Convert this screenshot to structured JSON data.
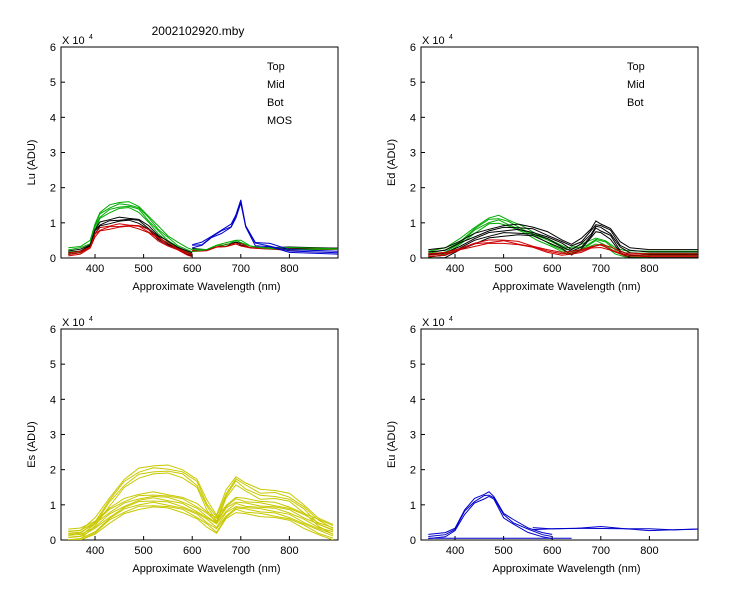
{
  "figure_title": "2002102920.mby",
  "colors": {
    "Top": "#000000",
    "Mid": "#cc0000",
    "Bot": "#00aa00",
    "MOS": "#0000cc",
    "Es": "#c8c800",
    "Eu": "#0000cc"
  },
  "chart_data": [
    {
      "id": "lu",
      "type": "line",
      "ylabel": "Lu (ADU)",
      "xlabel": "Approximate Wavelength (nm)",
      "xlim": [
        330,
        900
      ],
      "ylim": [
        0,
        6
      ],
      "xticks": [
        400,
        500,
        600,
        700,
        800
      ],
      "yticks": [
        0,
        1,
        2,
        3,
        4,
        5,
        6
      ],
      "exponent_label": "X 10",
      "exponent_power": "4",
      "legend": [
        "Top",
        "Mid",
        "Bot",
        "MOS"
      ],
      "series": [
        {
          "name": "Bot",
          "color_key": "Bot",
          "copies": 4,
          "spread": 0.06,
          "x": [
            345,
            370,
            390,
            400,
            410,
            430,
            450,
            470,
            490,
            510,
            530,
            550,
            570,
            590,
            600
          ],
          "y": [
            0.2,
            0.25,
            0.4,
            0.9,
            1.2,
            1.4,
            1.5,
            1.5,
            1.4,
            1.1,
            0.8,
            0.55,
            0.35,
            0.2,
            0.15
          ]
        },
        {
          "name": "Top",
          "color_key": "Top",
          "copies": 3,
          "spread": 0.05,
          "x": [
            345,
            370,
            390,
            400,
            410,
            430,
            450,
            470,
            490,
            510,
            530,
            550,
            570,
            590,
            600
          ],
          "y": [
            0.15,
            0.2,
            0.35,
            0.75,
            0.95,
            1.05,
            1.1,
            1.1,
            1.05,
            0.85,
            0.6,
            0.42,
            0.28,
            0.15,
            0.1
          ]
        },
        {
          "name": "Mid",
          "color_key": "Mid",
          "copies": 3,
          "spread": 0.04,
          "x": [
            345,
            370,
            390,
            400,
            410,
            430,
            450,
            470,
            490,
            510,
            530,
            550,
            570,
            590,
            600
          ],
          "y": [
            0.1,
            0.15,
            0.3,
            0.65,
            0.8,
            0.88,
            0.92,
            0.92,
            0.88,
            0.75,
            0.55,
            0.38,
            0.25,
            0.12,
            0.08
          ]
        },
        {
          "name": "Top",
          "color_key": "Top",
          "copies": 2,
          "spread": 0.02,
          "x": [
            600,
            630,
            650,
            670,
            690,
            700,
            720,
            750,
            800,
            900
          ],
          "y": [
            0.25,
            0.25,
            0.3,
            0.35,
            0.45,
            0.4,
            0.3,
            0.28,
            0.28,
            0.28
          ]
        },
        {
          "name": "Mid",
          "color_key": "Mid",
          "copies": 2,
          "spread": 0.03,
          "x": [
            600,
            630,
            650,
            670,
            690,
            700,
            720,
            750,
            800,
            900
          ],
          "y": [
            0.2,
            0.22,
            0.3,
            0.35,
            0.4,
            0.38,
            0.3,
            0.25,
            0.25,
            0.25
          ]
        },
        {
          "name": "Bot",
          "color_key": "Bot",
          "copies": 2,
          "spread": 0.03,
          "x": [
            600,
            630,
            650,
            670,
            690,
            700,
            720,
            750,
            800,
            900
          ],
          "y": [
            0.22,
            0.25,
            0.35,
            0.4,
            0.5,
            0.48,
            0.35,
            0.27,
            0.26,
            0.26
          ]
        },
        {
          "name": "MOS",
          "color_key": "MOS",
          "copies": 3,
          "spread": 0.04,
          "x": [
            600,
            620,
            640,
            660,
            680,
            690,
            700,
            710,
            730,
            760,
            800,
            900
          ],
          "y": [
            0.35,
            0.4,
            0.6,
            0.75,
            0.9,
            1.2,
            1.6,
            0.9,
            0.4,
            0.35,
            0.2,
            0.15
          ]
        }
      ]
    },
    {
      "id": "ed",
      "type": "line",
      "ylabel": "Ed  (ADU)",
      "xlabel": "Approximate Wavelength (nm)",
      "xlim": [
        330,
        900
      ],
      "ylim": [
        0,
        6
      ],
      "xticks": [
        400,
        500,
        600,
        700,
        800
      ],
      "yticks": [
        0,
        1,
        2,
        3,
        4,
        5,
        6
      ],
      "exponent_label": "X 10",
      "exponent_power": "4",
      "legend": [
        "Top",
        "Mid",
        "Bot"
      ],
      "series": [
        {
          "name": "Bot",
          "color_key": "Bot",
          "copies": 4,
          "spread": 0.06,
          "x": [
            345,
            380,
            410,
            440,
            470,
            490,
            510,
            540,
            570,
            600,
            630,
            650,
            670,
            690,
            710,
            730,
            750,
            800,
            900
          ],
          "y": [
            0.1,
            0.2,
            0.45,
            0.8,
            1.05,
            1.1,
            1.0,
            0.8,
            0.6,
            0.4,
            0.2,
            0.25,
            0.35,
            0.5,
            0.4,
            0.2,
            0.12,
            0.1,
            0.1
          ]
        },
        {
          "name": "Top",
          "color_key": "Top",
          "copies": 5,
          "spread": 0.07,
          "x": [
            345,
            380,
            410,
            440,
            470,
            500,
            530,
            560,
            590,
            620,
            640,
            660,
            680,
            690,
            700,
            720,
            740,
            760,
            800,
            900
          ],
          "y": [
            0.1,
            0.15,
            0.35,
            0.55,
            0.7,
            0.78,
            0.8,
            0.75,
            0.6,
            0.4,
            0.25,
            0.4,
            0.7,
            0.9,
            0.85,
            0.7,
            0.3,
            0.15,
            0.1,
            0.1
          ]
        },
        {
          "name": "Mid",
          "color_key": "Mid",
          "copies": 3,
          "spread": 0.04,
          "x": [
            345,
            380,
            410,
            440,
            470,
            500,
            530,
            560,
            590,
            620,
            640,
            660,
            680,
            700,
            720,
            750,
            800,
            900
          ],
          "y": [
            0.08,
            0.12,
            0.25,
            0.38,
            0.45,
            0.48,
            0.42,
            0.32,
            0.2,
            0.12,
            0.15,
            0.2,
            0.3,
            0.35,
            0.25,
            0.1,
            0.08,
            0.08
          ]
        }
      ]
    },
    {
      "id": "es",
      "type": "line",
      "ylabel": "Es  (ADU)",
      "xlabel": "Approximate Wavelength (nm)",
      "xlim": [
        330,
        900
      ],
      "ylim": [
        0,
        6
      ],
      "xticks": [
        400,
        500,
        600,
        700,
        800
      ],
      "yticks": [
        0,
        1,
        2,
        3,
        4,
        5,
        6
      ],
      "exponent_label": "X 10",
      "exponent_power": "4",
      "legend": [],
      "series": [
        {
          "name": "Es",
          "color_key": "Es",
          "copies": 4,
          "spread": 0.08,
          "x": [
            345,
            370,
            400,
            430,
            460,
            490,
            520,
            550,
            580,
            610,
            630,
            650,
            670,
            690,
            710,
            740,
            770,
            800,
            830,
            860,
            890
          ],
          "y": [
            0.12,
            0.15,
            0.5,
            1.1,
            1.6,
            1.9,
            2.0,
            2.0,
            1.9,
            1.6,
            1.0,
            0.6,
            1.3,
            1.7,
            1.5,
            1.3,
            1.3,
            1.2,
            0.9,
            0.5,
            0.3
          ]
        },
        {
          "name": "Es",
          "color_key": "Es",
          "copies": 8,
          "spread": 0.06,
          "x": [
            345,
            370,
            400,
            430,
            460,
            490,
            520,
            550,
            580,
            610,
            630,
            650,
            670,
            690,
            710,
            740,
            770,
            800,
            830,
            860,
            890
          ],
          "y": [
            0.1,
            0.13,
            0.35,
            0.7,
            0.95,
            1.1,
            1.15,
            1.1,
            1.0,
            0.8,
            0.6,
            0.4,
            0.8,
            1.0,
            0.95,
            0.9,
            0.85,
            0.75,
            0.55,
            0.35,
            0.2
          ]
        }
      ]
    },
    {
      "id": "eu",
      "type": "line",
      "ylabel": "Eu  (ADU)",
      "xlabel": "Approximate Wavelength (nm)",
      "xlim": [
        330,
        900
      ],
      "ylim": [
        0,
        6
      ],
      "xticks": [
        400,
        500,
        600,
        700,
        800
      ],
      "yticks": [
        0,
        1,
        2,
        3,
        4,
        5,
        6
      ],
      "exponent_label": "X 10",
      "exponent_power": "4",
      "legend": [],
      "series": [
        {
          "name": "Eu",
          "color_key": "Eu",
          "copies": 3,
          "spread": 0.06,
          "x": [
            345,
            380,
            400,
            420,
            440,
            460,
            470,
            480,
            500,
            520,
            550,
            580,
            600
          ],
          "y": [
            0.1,
            0.15,
            0.3,
            0.8,
            1.1,
            1.25,
            1.3,
            1.2,
            0.7,
            0.5,
            0.3,
            0.15,
            0.1
          ]
        },
        {
          "name": "Eu",
          "color_key": "Eu",
          "copies": 1,
          "spread": 0,
          "x": [
            345,
            500,
            640
          ],
          "y": [
            0.05,
            0.05,
            0.05
          ]
        },
        {
          "name": "Eu",
          "color_key": "Eu",
          "copies": 2,
          "spread": 0.02,
          "x": [
            560,
            600,
            650,
            700,
            750,
            800,
            850,
            900
          ],
          "y": [
            0.33,
            0.33,
            0.32,
            0.35,
            0.32,
            0.3,
            0.3,
            0.3
          ]
        }
      ]
    }
  ]
}
